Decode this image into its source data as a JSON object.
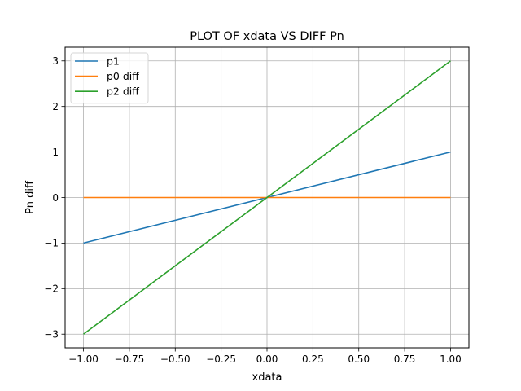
{
  "chart_data": {
    "type": "line",
    "title": "PLOT OF xdata VS DIFF Pn",
    "xlabel": "xdata",
    "ylabel": "Pn diff",
    "xlim": [
      -1.1,
      1.1
    ],
    "ylim": [
      -3.3,
      3.3
    ],
    "xticks": [
      -1.0,
      -0.75,
      -0.5,
      -0.25,
      0.0,
      0.25,
      0.5,
      0.75,
      1.0
    ],
    "xtick_labels": [
      "−1.00",
      "−0.75",
      "−0.50",
      "−0.25",
      "0.00",
      "0.25",
      "0.50",
      "0.75",
      "1.00"
    ],
    "yticks": [
      -3,
      -2,
      -1,
      0,
      1,
      2,
      3
    ],
    "ytick_labels": [
      "−3",
      "−2",
      "−1",
      "0",
      "1",
      "2",
      "3"
    ],
    "grid": true,
    "legend_position": "top-left",
    "series": [
      {
        "name": "p1",
        "color": "#1f77b4",
        "x": [
          -1.0,
          1.0
        ],
        "y": [
          -1.0,
          1.0
        ]
      },
      {
        "name": "p0 diff",
        "color": "#ff7f0e",
        "x": [
          -1.0,
          1.0
        ],
        "y": [
          0.0,
          0.0
        ]
      },
      {
        "name": "p2 diff",
        "color": "#2ca02c",
        "x": [
          -1.0,
          1.0
        ],
        "y": [
          -3.0,
          3.0
        ]
      }
    ]
  }
}
